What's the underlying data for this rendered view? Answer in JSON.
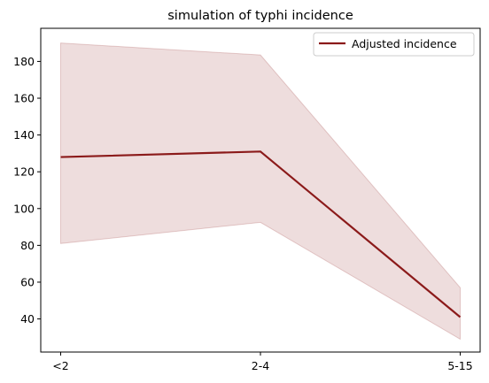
{
  "chart_data": {
    "type": "line",
    "title": "simulation of typhi incidence",
    "xlabel": "",
    "ylabel": "",
    "categories": [
      "<2",
      "2-4",
      "5-15"
    ],
    "series": [
      {
        "name": "Adjusted incidence",
        "values": [
          128,
          131,
          41
        ],
        "lower": [
          81,
          92.5,
          29
        ],
        "upper": [
          190,
          183.5,
          57
        ]
      }
    ],
    "ylim": [
      22,
      198
    ],
    "yticks": [
      40,
      60,
      80,
      100,
      120,
      140,
      160,
      180
    ],
    "grid": false,
    "legend_position": "top-right",
    "colors": {
      "line": "#8b1a1a",
      "band": "#8b1a1a"
    }
  }
}
